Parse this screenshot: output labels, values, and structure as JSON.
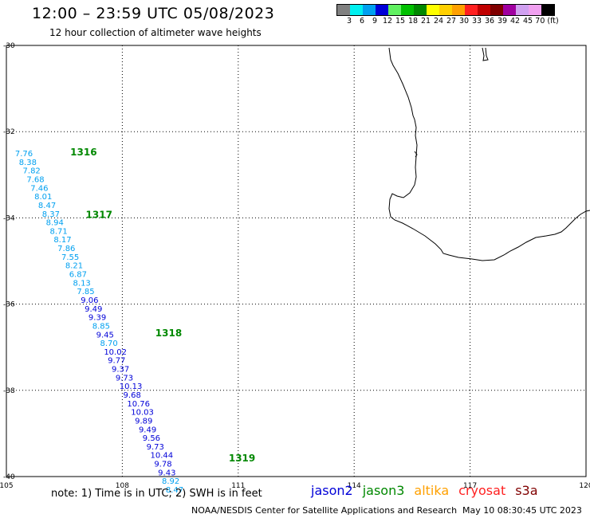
{
  "header": {
    "title": "12:00 – 23:59 UTC 05/08/2023",
    "subtitle": "12 hour collection of altimeter wave heights"
  },
  "legend": {
    "colors": [
      "#808080",
      "#00f0f0",
      "#00a0f0",
      "#0000d8",
      "#60f060",
      "#00c000",
      "#008800",
      "#ffff00",
      "#ffd000",
      "#ffa000",
      "#ff2020",
      "#c00000",
      "#800000",
      "#a000a0",
      "#d0a0f0",
      "#f0a0f0",
      "#000000"
    ],
    "ticks": [
      "3",
      "6",
      "9",
      "12",
      "15",
      "18",
      "21",
      "24",
      "27",
      "30",
      "33",
      "36",
      "39",
      "42",
      "45",
      "70 (ft)"
    ]
  },
  "axes": {
    "lat_labels": [
      "-30",
      "-32",
      "-34",
      "-36",
      "-38",
      "-40"
    ],
    "lon_labels": [
      "105",
      "108",
      "111",
      "114",
      "117",
      "120"
    ],
    "lon_range": [
      105,
      120
    ],
    "lat_range": [
      -30,
      -40
    ]
  },
  "passes": [
    {
      "label": "1316",
      "lon": 106.2,
      "lat": -32.55
    },
    {
      "label": "1317",
      "lon": 106.6,
      "lat": -34.0
    },
    {
      "label": "1318",
      "lon": 108.4,
      "lat": -36.75
    },
    {
      "label": "1319",
      "lon": 110.3,
      "lat": -39.65
    }
  ],
  "observations": [
    {
      "value": "7.76",
      "lon": 105.1,
      "lat": -32.57,
      "color": "#00a0f0"
    },
    {
      "value": "8.38",
      "lon": 105.2,
      "lat": -32.77,
      "color": "#00a0f0"
    },
    {
      "value": "7.82",
      "lon": 105.3,
      "lat": -32.97,
      "color": "#00a0f0"
    },
    {
      "value": "7.68",
      "lon": 105.4,
      "lat": -33.17,
      "color": "#00a0f0"
    },
    {
      "value": "7.46",
      "lon": 105.5,
      "lat": -33.37,
      "color": "#00a0f0"
    },
    {
      "value": "8.01",
      "lon": 105.6,
      "lat": -33.57,
      "color": "#00a0f0"
    },
    {
      "value": "8.47",
      "lon": 105.7,
      "lat": -33.77,
      "color": "#00a0f0"
    },
    {
      "value": "8.37",
      "lon": 105.8,
      "lat": -33.97,
      "color": "#00a0f0"
    },
    {
      "value": "8.94",
      "lon": 105.9,
      "lat": -34.17,
      "color": "#00a0f0"
    },
    {
      "value": "8.71",
      "lon": 106.0,
      "lat": -34.37,
      "color": "#00a0f0"
    },
    {
      "value": "8.17",
      "lon": 106.1,
      "lat": -34.57,
      "color": "#00a0f0"
    },
    {
      "value": "7.86",
      "lon": 106.2,
      "lat": -34.77,
      "color": "#00a0f0"
    },
    {
      "value": "7.55",
      "lon": 106.3,
      "lat": -34.97,
      "color": "#00a0f0"
    },
    {
      "value": "8.21",
      "lon": 106.4,
      "lat": -35.17,
      "color": "#00a0f0"
    },
    {
      "value": "6.87",
      "lon": 106.5,
      "lat": -35.37,
      "color": "#00a0f0"
    },
    {
      "value": "8.13",
      "lon": 106.6,
      "lat": -35.57,
      "color": "#00a0f0"
    },
    {
      "value": "7.85",
      "lon": 106.7,
      "lat": -35.77,
      "color": "#00a0f0"
    },
    {
      "value": "9.06",
      "lon": 106.8,
      "lat": -35.97,
      "color": "#0000d8"
    },
    {
      "value": "9.49",
      "lon": 106.9,
      "lat": -36.17,
      "color": "#0000d8"
    },
    {
      "value": "9.39",
      "lon": 107.0,
      "lat": -36.37,
      "color": "#0000d8"
    },
    {
      "value": "8.85",
      "lon": 107.1,
      "lat": -36.57,
      "color": "#00a0f0"
    },
    {
      "value": "9.45",
      "lon": 107.2,
      "lat": -36.77,
      "color": "#0000d8"
    },
    {
      "value": "8.70",
      "lon": 107.3,
      "lat": -36.97,
      "color": "#00a0f0"
    },
    {
      "value": "10.02",
      "lon": 107.4,
      "lat": -37.17,
      "color": "#0000d8"
    },
    {
      "value": "9.77",
      "lon": 107.5,
      "lat": -37.37,
      "color": "#0000d8"
    },
    {
      "value": "9.37",
      "lon": 107.6,
      "lat": -37.57,
      "color": "#0000d8"
    },
    {
      "value": "9.73",
      "lon": 107.7,
      "lat": -37.77,
      "color": "#0000d8"
    },
    {
      "value": "10.13",
      "lon": 107.8,
      "lat": -37.97,
      "color": "#0000d8"
    },
    {
      "value": "9.68",
      "lon": 107.9,
      "lat": -38.17,
      "color": "#0000d8"
    },
    {
      "value": "10.76",
      "lon": 108.0,
      "lat": -38.37,
      "color": "#0000d8"
    },
    {
      "value": "10.03",
      "lon": 108.1,
      "lat": -38.57,
      "color": "#0000d8"
    },
    {
      "value": "9.89",
      "lon": 108.2,
      "lat": -38.77,
      "color": "#0000d8"
    },
    {
      "value": "9.49",
      "lon": 108.3,
      "lat": -38.97,
      "color": "#0000d8"
    },
    {
      "value": "9.56",
      "lon": 108.4,
      "lat": -39.17,
      "color": "#0000d8"
    },
    {
      "value": "9.73",
      "lon": 108.5,
      "lat": -39.37,
      "color": "#0000d8"
    },
    {
      "value": "10.44",
      "lon": 108.6,
      "lat": -39.57,
      "color": "#0000d8"
    },
    {
      "value": "9.78",
      "lon": 108.7,
      "lat": -39.77,
      "color": "#0000d8"
    },
    {
      "value": "9.43",
      "lon": 108.8,
      "lat": -39.97,
      "color": "#0000d8"
    },
    {
      "value": "8.92",
      "lon": 108.9,
      "lat": -40.17,
      "color": "#00a0f0"
    },
    {
      "value": "8.47",
      "lon": 109.0,
      "lat": -40.37,
      "color": "#00a0f0"
    }
  ],
  "note": "note:  1) Time is in UTC;  2) SWH is in feet",
  "missions": [
    {
      "name": "jason2",
      "color": "#0000d8"
    },
    {
      "name": "jason3",
      "color": "#008800"
    },
    {
      "name": "altika",
      "color": "#ffa000"
    },
    {
      "name": "cryosat",
      "color": "#ff2020"
    },
    {
      "name": "s3a",
      "color": "#800000"
    }
  ],
  "footer": {
    "credit": "NOAA/NESDIS Center for Satellite Applications and Research",
    "timestamp": "May 10 08:30:45 UTC 2023"
  }
}
